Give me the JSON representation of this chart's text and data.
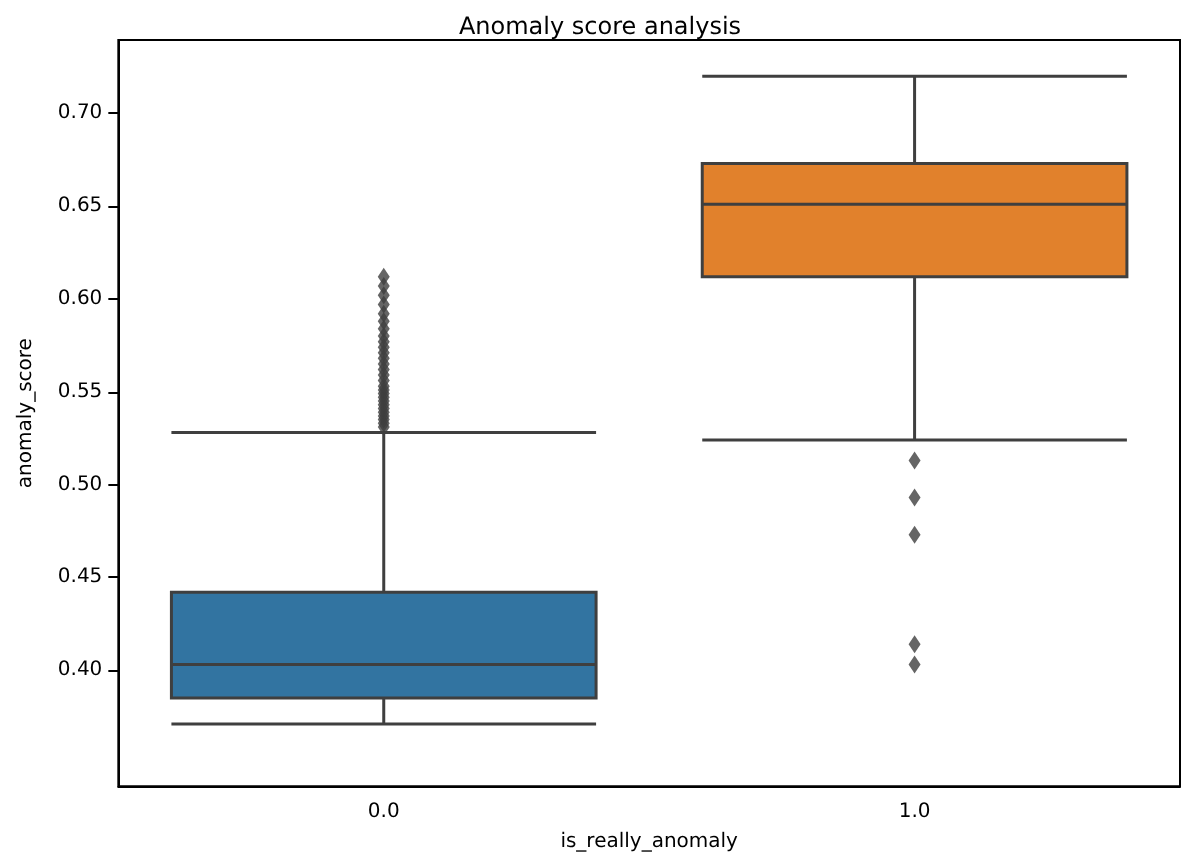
{
  "chart_data": {
    "type": "box",
    "title": "Anomaly score analysis",
    "xlabel": "is_really_anomaly",
    "ylabel": "anomaly_score",
    "categories": [
      "0.0",
      "1.0"
    ],
    "colors": [
      "#3274a1",
      "#e1812c"
    ],
    "boxes": [
      {
        "low": 0.371,
        "q1": 0.385,
        "median": 0.403,
        "q3": 0.442,
        "high": 0.528,
        "outliers": [
          0.531,
          0.533,
          0.535,
          0.537,
          0.539,
          0.541,
          0.543,
          0.545,
          0.547,
          0.549,
          0.551,
          0.553,
          0.556,
          0.559,
          0.562,
          0.565,
          0.568,
          0.571,
          0.574,
          0.577,
          0.58,
          0.584,
          0.588,
          0.592,
          0.597,
          0.602,
          0.607,
          0.612
        ]
      },
      {
        "low": 0.524,
        "q1": 0.612,
        "median": 0.651,
        "q3": 0.673,
        "high": 0.72,
        "outliers": [
          0.513,
          0.493,
          0.473,
          0.414,
          0.403
        ]
      }
    ],
    "ylim": [
      0.3375,
      0.7395
    ],
    "yticks": [
      {
        "value": 0.4,
        "label": "0.40"
      },
      0.45,
      {
        "value": 0.5,
        "label": "0.50"
      },
      0.55,
      {
        "value": 0.6,
        "label": "0.60"
      },
      0.65,
      {
        "value": 0.7,
        "label": "0.70"
      }
    ],
    "grid": false,
    "marker": "diamond"
  }
}
